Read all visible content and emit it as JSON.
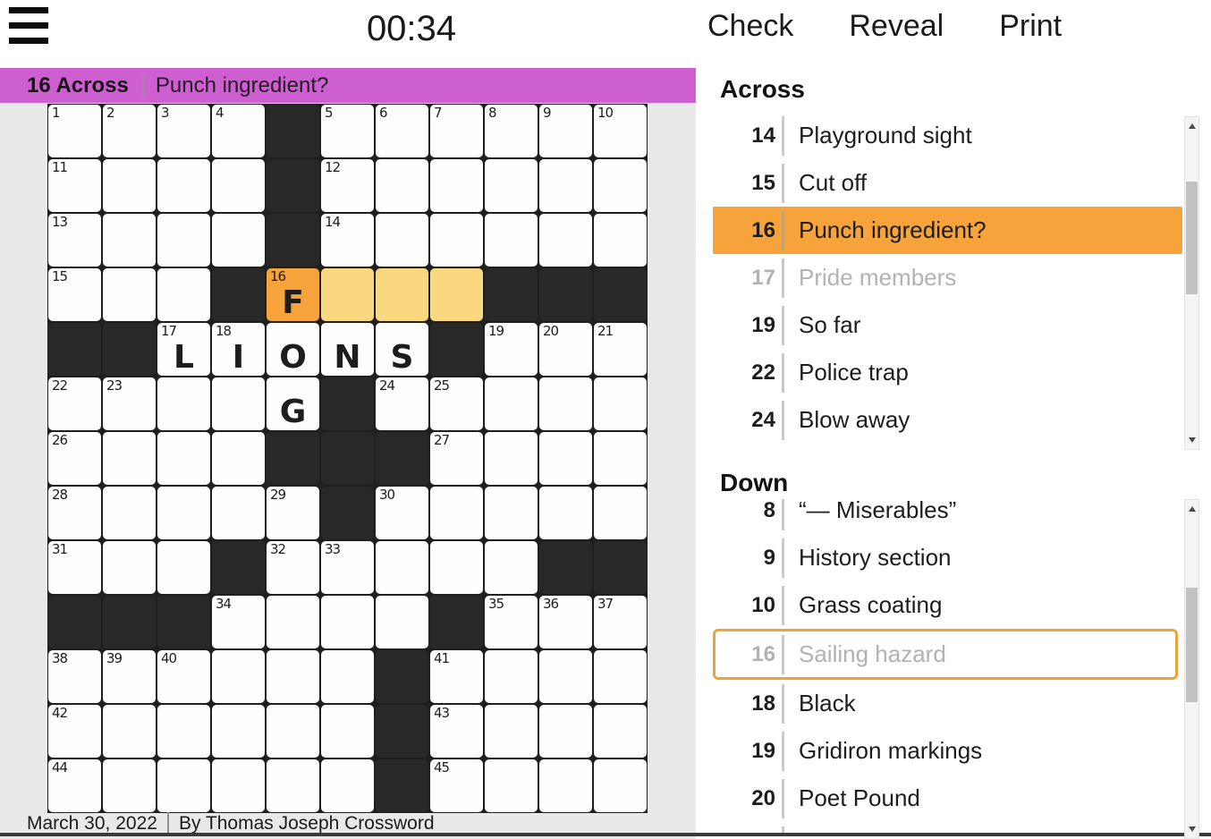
{
  "colors": {
    "banner_purple": "#cd5fd1",
    "accent_orange": "#f6a33b",
    "highlight_yellow": "#f9d87f",
    "cell_black": "#282828",
    "solved_gray": "#b2b2b2"
  },
  "topbar": {
    "menu_icon": "hamburger-menu-icon",
    "timer": "00:34",
    "buttons": [
      {
        "label": "Check"
      },
      {
        "label": "Reveal"
      },
      {
        "label": "Print"
      }
    ]
  },
  "banner": {
    "number_label": "16 Across",
    "separator": "|",
    "clue_text": "Punch ingredient?"
  },
  "grid": {
    "rows": 13,
    "cols": 11,
    "cells": [
      [
        {
          "n": "1"
        },
        {
          "n": "2"
        },
        {
          "n": "3"
        },
        {
          "n": "4"
        },
        "B",
        {
          "n": "5"
        },
        {
          "n": "6"
        },
        {
          "n": "7"
        },
        {
          "n": "8"
        },
        {
          "n": "9"
        },
        {
          "n": "10"
        }
      ],
      [
        {
          "n": "11"
        },
        {},
        {},
        {},
        "B",
        {
          "n": "12"
        },
        {},
        {},
        {},
        {},
        {}
      ],
      [
        {
          "n": "13"
        },
        {},
        {},
        {},
        "B",
        {
          "n": "14"
        },
        {},
        {},
        {},
        {},
        {}
      ],
      [
        {
          "n": "15"
        },
        {},
        {},
        "B",
        {
          "n": "16",
          "l": "F",
          "h": "sel"
        },
        {
          "h": "word"
        },
        {
          "h": "word"
        },
        {
          "h": "word"
        },
        "B",
        "B",
        "B"
      ],
      [
        "B",
        "B",
        {
          "n": "17",
          "l": "L"
        },
        {
          "n": "18",
          "l": "I"
        },
        {
          "l": "O"
        },
        {
          "l": "N"
        },
        {
          "l": "S"
        },
        "B",
        {
          "n": "19"
        },
        {
          "n": "20"
        },
        {
          "n": "21"
        }
      ],
      [
        {
          "n": "22"
        },
        {
          "n": "23"
        },
        {},
        {},
        {
          "l": "G"
        },
        "B",
        {
          "n": "24"
        },
        {
          "n": "25"
        },
        {},
        {},
        {}
      ],
      [
        {
          "n": "26"
        },
        {},
        {},
        {},
        "B",
        "B",
        "B",
        {
          "n": "27"
        },
        {},
        {},
        {}
      ],
      [
        {
          "n": "28"
        },
        {},
        {},
        {},
        {
          "n": "29"
        },
        "B",
        {
          "n": "30"
        },
        {},
        {},
        {},
        {}
      ],
      [
        {
          "n": "31"
        },
        {},
        {},
        "B",
        {
          "n": "32"
        },
        {
          "n": "33"
        },
        {},
        {},
        {},
        "B",
        "B"
      ],
      [
        "B",
        "B",
        "B",
        {
          "n": "34"
        },
        {},
        {},
        {},
        "B",
        {
          "n": "35"
        },
        {
          "n": "36"
        },
        {
          "n": "37"
        }
      ],
      [
        {
          "n": "38"
        },
        {
          "n": "39"
        },
        {
          "n": "40"
        },
        {},
        {},
        {},
        "B",
        {
          "n": "41"
        },
        {},
        {},
        {}
      ],
      [
        {
          "n": "42"
        },
        {},
        {},
        {},
        {},
        {},
        "B",
        {
          "n": "43"
        },
        {},
        {},
        {}
      ],
      [
        {
          "n": "44"
        },
        {},
        {},
        {},
        {},
        {},
        "B",
        {
          "n": "45"
        },
        {},
        {},
        {}
      ]
    ]
  },
  "clues": {
    "across": {
      "heading": "Across",
      "items": [
        {
          "num": "14",
          "text": "Playground sight",
          "state": "normal"
        },
        {
          "num": "15",
          "text": "Cut off",
          "state": "normal"
        },
        {
          "num": "16",
          "text": "Punch ingredient?",
          "state": "selected"
        },
        {
          "num": "17",
          "text": "Pride members",
          "state": "solved"
        },
        {
          "num": "19",
          "text": "So far",
          "state": "normal"
        },
        {
          "num": "22",
          "text": "Police trap",
          "state": "normal"
        },
        {
          "num": "24",
          "text": "Blow away",
          "state": "normal"
        }
      ]
    },
    "down": {
      "heading": "Down",
      "items": [
        {
          "num": "8",
          "text": "“— Miserables”",
          "state": "normal"
        },
        {
          "num": "9",
          "text": "History section",
          "state": "normal"
        },
        {
          "num": "10",
          "text": "Grass coating",
          "state": "normal"
        },
        {
          "num": "16",
          "text": "Sailing hazard",
          "state": "solved-outlined"
        },
        {
          "num": "18",
          "text": "Black",
          "state": "normal"
        },
        {
          "num": "19",
          "text": "Gridiron markings",
          "state": "normal"
        },
        {
          "num": "20",
          "text": "Poet Pound",
          "state": "normal"
        },
        {
          "num": "",
          "text": "",
          "state": "sliver"
        }
      ]
    }
  },
  "footer": {
    "date": "March 30, 2022",
    "separator": "|",
    "byline": "By Thomas Joseph Crossword"
  }
}
